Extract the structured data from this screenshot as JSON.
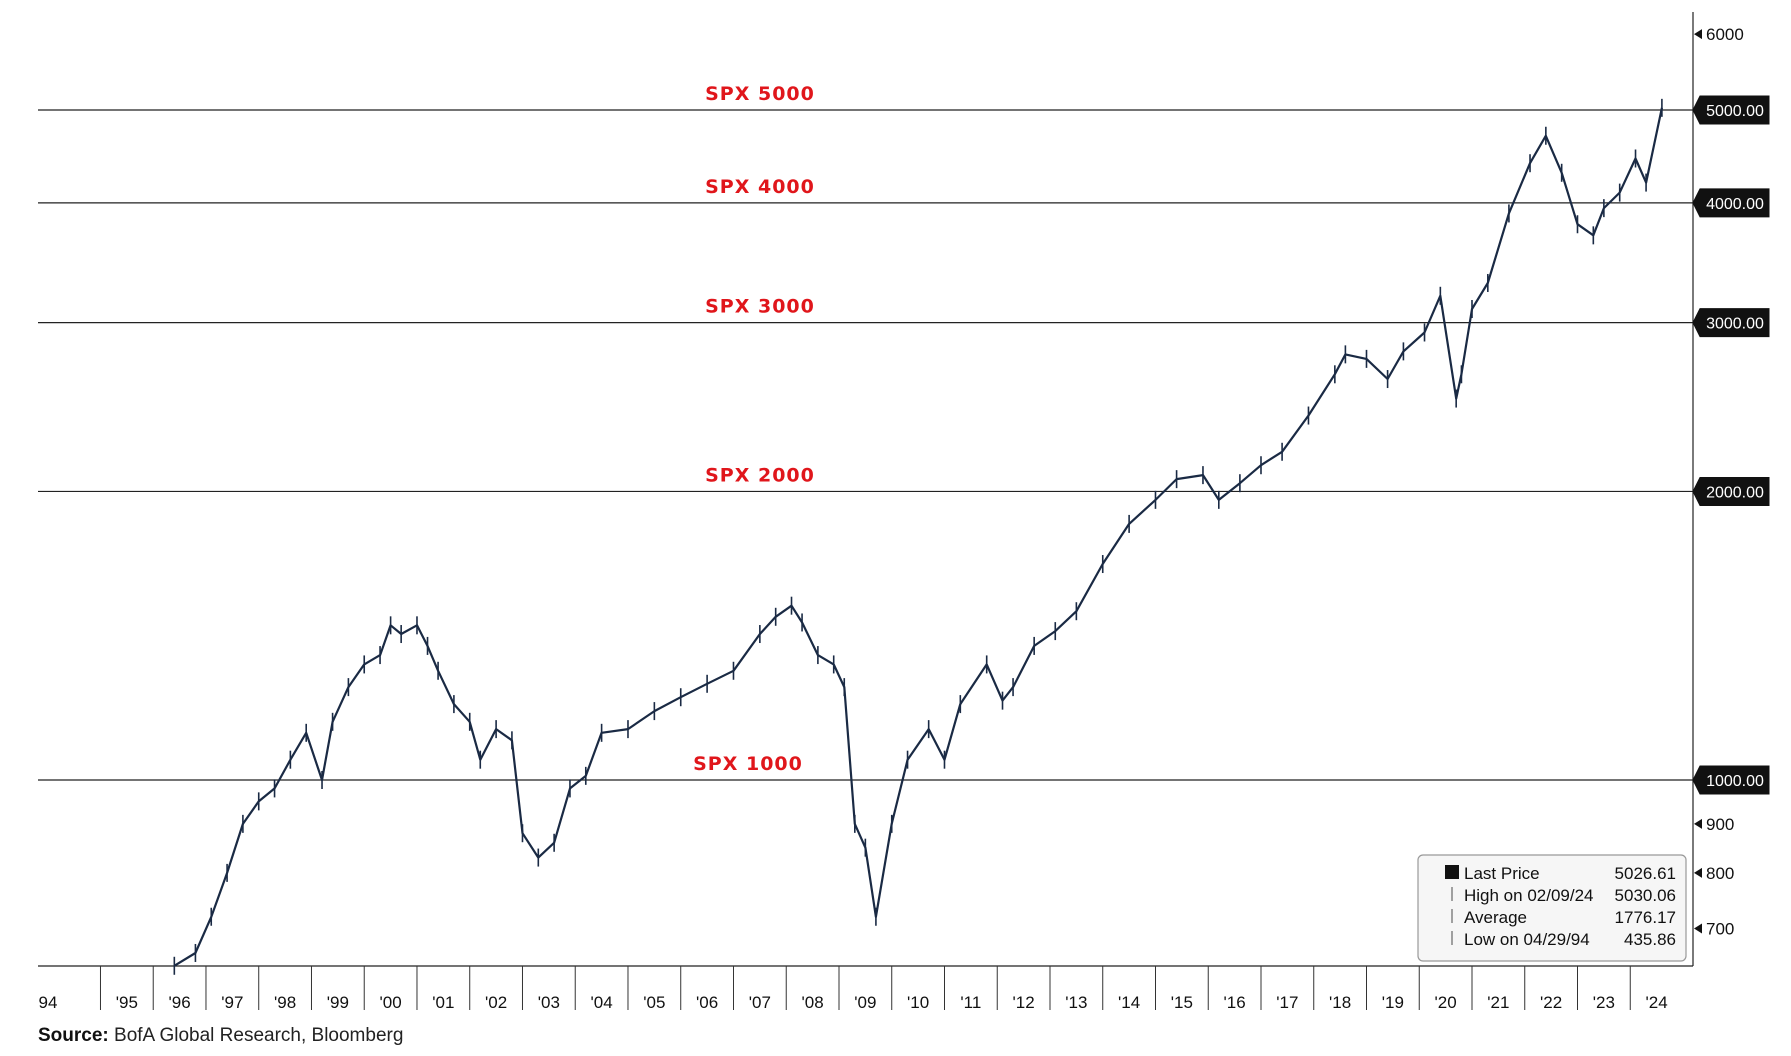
{
  "source": {
    "label": "Source:",
    "text": "BofA Global Research, Bloomberg"
  },
  "chart_data": {
    "type": "line",
    "y_scale": "log",
    "ylim": [
      640,
      6600
    ],
    "y_ticks_minor": [
      6000,
      900,
      800,
      700
    ],
    "y_ticks_major": [
      {
        "value": 5000,
        "label": "5000.00"
      },
      {
        "value": 4000,
        "label": "4000.00"
      },
      {
        "value": 3000,
        "label": "3000.00"
      },
      {
        "value": 2000,
        "label": "2000.00"
      },
      {
        "value": 1000,
        "label": "1000.00"
      }
    ],
    "x_tick_labels": [
      "94",
      "'95",
      "'96",
      "'97",
      "'98",
      "'99",
      "'00",
      "'01",
      "'02",
      "'03",
      "'04",
      "'05",
      "'06",
      "'07",
      "'08",
      "'09",
      "'10",
      "'11",
      "'12",
      "'13",
      "'14",
      "'15",
      "'16",
      "'17",
      "'18",
      "'19",
      "'20",
      "'21",
      "'22",
      "'23",
      "'24"
    ],
    "reference_lines": [
      {
        "value": 5000,
        "label": "SPX 5000"
      },
      {
        "value": 4000,
        "label": "SPX 4000"
      },
      {
        "value": 3000,
        "label": "SPX 3000"
      },
      {
        "value": 2000,
        "label": "SPX 2000"
      },
      {
        "value": 1000,
        "label": "SPX 1000"
      }
    ],
    "reference_label_color": "#e0161b",
    "series": [
      {
        "name": "Last Price",
        "color": "#1a2a44",
        "x": [
          1995.9,
          1996.3,
          1996.6,
          1996.9,
          1997.2,
          1997.5,
          1997.8,
          1998.1,
          1998.4,
          1998.7,
          1998.9,
          1999.2,
          1999.5,
          1999.8,
          2000.0,
          2000.2,
          2000.5,
          2000.7,
          2000.9,
          2001.2,
          2001.5,
          2001.7,
          2002.0,
          2002.3,
          2002.5,
          2002.8,
          2003.1,
          2003.4,
          2003.7,
          2004.0,
          2004.5,
          2005.0,
          2005.5,
          2006.0,
          2006.5,
          2007.0,
          2007.3,
          2007.6,
          2007.8,
          2008.1,
          2008.4,
          2008.6,
          2008.8,
          2009.0,
          2009.2,
          2009.5,
          2009.8,
          2010.2,
          2010.5,
          2010.8,
          2011.3,
          2011.6,
          2011.8,
          2012.2,
          2012.6,
          2013.0,
          2013.5,
          2014.0,
          2014.5,
          2014.9,
          2015.4,
          2015.7,
          2016.1,
          2016.5,
          2016.9,
          2017.4,
          2017.9,
          2018.1,
          2018.5,
          2018.9,
          2019.2,
          2019.6,
          2019.9,
          2020.2,
          2020.3,
          2020.5,
          2020.8,
          2021.2,
          2021.6,
          2021.9,
          2022.2,
          2022.5,
          2022.8,
          2023.0,
          2023.3,
          2023.6,
          2023.8,
          2024.1
        ],
        "y": [
          640,
          660,
          720,
          800,
          900,
          950,
          980,
          1050,
          1120,
          1000,
          1150,
          1250,
          1320,
          1350,
          1450,
          1420,
          1450,
          1380,
          1300,
          1200,
          1150,
          1050,
          1130,
          1100,
          880,
          830,
          860,
          980,
          1010,
          1120,
          1130,
          1180,
          1220,
          1260,
          1300,
          1420,
          1480,
          1520,
          1460,
          1350,
          1320,
          1250,
          900,
          850,
          720,
          900,
          1050,
          1130,
          1050,
          1200,
          1320,
          1210,
          1250,
          1380,
          1430,
          1500,
          1680,
          1850,
          1960,
          2060,
          2080,
          1960,
          2040,
          2130,
          2200,
          2400,
          2650,
          2780,
          2750,
          2620,
          2800,
          2930,
          3200,
          2500,
          2650,
          3100,
          3300,
          3900,
          4400,
          4700,
          4300,
          3800,
          3700,
          3950,
          4100,
          4450,
          4200,
          5026
        ]
      }
    ],
    "legend": {
      "position": "bottom-right",
      "items": [
        {
          "marker": "square",
          "label": "Last Price",
          "value": "5026.61"
        },
        {
          "marker": "high",
          "label": "High on 02/09/24",
          "value": "5030.06"
        },
        {
          "marker": "avg",
          "label": "Average",
          "value": "1776.17"
        },
        {
          "marker": "low",
          "label": "Low on 04/29/94",
          "value": "435.86"
        }
      ]
    }
  }
}
